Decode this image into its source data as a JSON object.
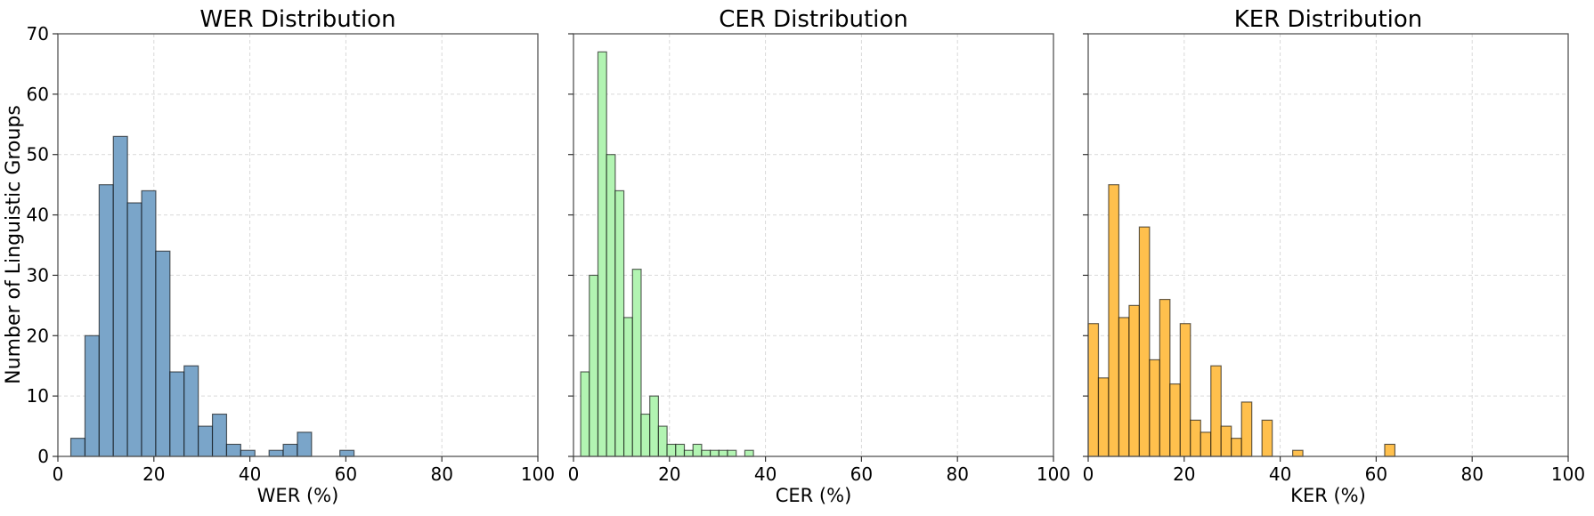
{
  "y_label": "Number of Linguistic Groups",
  "chart_data": [
    {
      "type": "bar",
      "title": "WER Distribution",
      "xlabel": "WER (%)",
      "ylabel": "Number of Linguistic Groups",
      "xlim": [
        0,
        100
      ],
      "ylim": [
        0,
        70
      ],
      "xticks": [
        "0",
        "20",
        "40",
        "60",
        "80",
        "100"
      ],
      "yticks": [
        "0",
        "10",
        "20",
        "30",
        "40",
        "50",
        "60",
        "70"
      ],
      "grid": true,
      "bin_start": 2.7,
      "bin_width": 2.95,
      "counts": [
        3,
        20,
        45,
        53,
        42,
        44,
        34,
        14,
        15,
        5,
        7,
        2,
        1,
        0,
        1,
        2,
        4,
        0,
        0,
        1
      ],
      "color": "#7aa5c9"
    },
    {
      "type": "bar",
      "title": "CER Distribution",
      "xlabel": "CER (%)",
      "xlim": [
        0,
        100
      ],
      "ylim": [
        0,
        70
      ],
      "xticks": [
        "0",
        "20",
        "40",
        "60",
        "80",
        "100"
      ],
      "grid": true,
      "bin_start": 1.5,
      "bin_width": 1.8,
      "counts": [
        14,
        30,
        67,
        50,
        44,
        23,
        31,
        7,
        10,
        5,
        2,
        2,
        1,
        2,
        1,
        1,
        1,
        1,
        0,
        1
      ],
      "color": "#b2f4b2"
    },
    {
      "type": "bar",
      "title": "KER Distribution",
      "xlabel": "KER (%)",
      "xlim": [
        0,
        100
      ],
      "ylim": [
        0,
        70
      ],
      "xticks": [
        "0",
        "20",
        "40",
        "60",
        "80",
        "100"
      ],
      "grid": true,
      "bin_start": 0,
      "bin_width": 2.13,
      "counts": [
        22,
        13,
        45,
        23,
        25,
        38,
        16,
        26,
        12,
        22,
        6,
        4,
        15,
        5,
        3,
        9,
        0,
        6,
        0,
        0,
        1,
        0,
        0,
        0,
        0,
        0,
        0,
        0,
        0,
        2
      ],
      "color": "#ffc04d"
    }
  ]
}
